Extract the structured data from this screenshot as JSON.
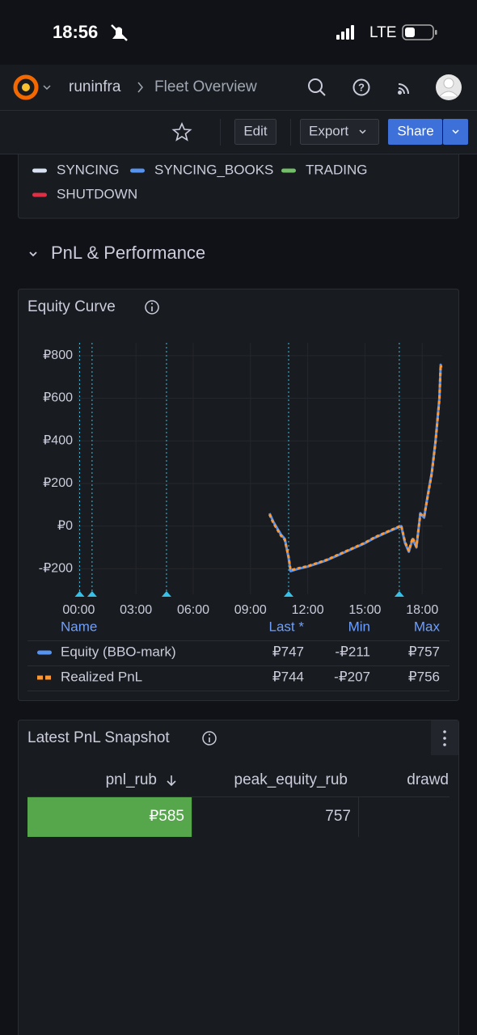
{
  "status_bar": {
    "time": "18:56",
    "network": "LTE"
  },
  "nav": {
    "org": "runinfra",
    "dashboard": "Fleet Overview"
  },
  "toolbar": {
    "edit": "Edit",
    "export": "Export",
    "share": "Share"
  },
  "state_legend": [
    {
      "name": "SYNCING",
      "color": "#d8e2f2"
    },
    {
      "name": "SYNCING_BOOKS",
      "color": "#5794f2"
    },
    {
      "name": "TRADING",
      "color": "#73bf69"
    },
    {
      "name": "SHUTDOWN",
      "color": "#e02f44"
    }
  ],
  "section": {
    "title": "PnL & Performance"
  },
  "chart_data": {
    "type": "line",
    "title": "Equity Curve",
    "x": [
      10.0,
      10.2,
      10.4,
      10.6,
      10.8,
      11.0,
      11.1,
      11.5,
      12.0,
      12.5,
      13.0,
      13.5,
      14.0,
      14.5,
      15.0,
      15.5,
      16.0,
      16.5,
      16.9,
      17.1,
      17.3,
      17.5,
      17.7,
      17.9,
      18.1,
      18.3,
      18.5,
      18.7,
      18.9,
      18.97,
      19.0
    ],
    "series": [
      {
        "name": "Equity (BBO-mark)",
        "color": "#5794f2",
        "dash": false,
        "values": [
          60,
          20,
          -10,
          -40,
          -60,
          -150,
          -211,
          -200,
          -190,
          -175,
          -160,
          -140,
          -120,
          -100,
          -80,
          -55,
          -35,
          -15,
          0,
          -80,
          -120,
          -60,
          -100,
          60,
          40,
          150,
          250,
          400,
          600,
          757,
          747
        ]
      },
      {
        "name": "Realized PnL",
        "color": "#ff9830",
        "dash": true,
        "values": [
          55,
          15,
          -15,
          -45,
          -65,
          -145,
          -207,
          -198,
          -188,
          -173,
          -158,
          -138,
          -118,
          -98,
          -78,
          -53,
          -33,
          -13,
          2,
          -75,
          -115,
          -55,
          -95,
          55,
          45,
          145,
          245,
          395,
          595,
          756,
          744
        ]
      }
    ],
    "xlim": [
      -0.1,
      19.05
    ],
    "xticks": [
      {
        "value": 0,
        "label": "00:00"
      },
      {
        "value": 3,
        "label": "03:00"
      },
      {
        "value": 6,
        "label": "06:00"
      },
      {
        "value": 9,
        "label": "09:00"
      },
      {
        "value": 12,
        "label": "12:00"
      },
      {
        "value": 15,
        "label": "15:00"
      },
      {
        "value": 18,
        "label": "18:00"
      }
    ],
    "ylim": [
      -320,
      860
    ],
    "yticks": [
      {
        "value": -200,
        "label": "-₽200"
      },
      {
        "value": 0,
        "label": "₽0"
      },
      {
        "value": 200,
        "label": "₽200"
      },
      {
        "value": 400,
        "label": "₽400"
      },
      {
        "value": 600,
        "label": "₽600"
      },
      {
        "value": 800,
        "label": "₽800"
      }
    ],
    "grid": true,
    "annotations": [
      0.05,
      0.7,
      4.6,
      11.0,
      16.8
    ],
    "annotation_color": "#36c1e8",
    "legend": {
      "columns": [
        "Name",
        "Last *",
        "Min",
        "Max"
      ],
      "rows": [
        [
          "₽747",
          "-₽211",
          "₽757"
        ],
        [
          "₽744",
          "-₽207",
          "₽756"
        ]
      ]
    }
  },
  "snapshot": {
    "title": "Latest PnL Snapshot",
    "columns": [
      "pnl_rub",
      "peak_equity_rub",
      "drawd"
    ],
    "rows": [
      [
        "₽585",
        "757"
      ]
    ],
    "bar_color": "#56a64b"
  }
}
